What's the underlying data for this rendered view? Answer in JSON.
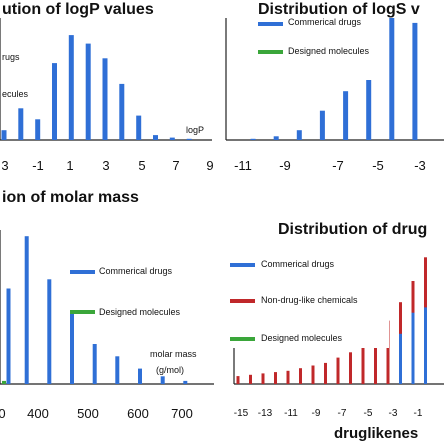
{
  "colors": {
    "blue": "#2f6fd6",
    "green": "#3aa63a",
    "red": "#c0282a",
    "axis": "#222222"
  },
  "chart_data": [
    {
      "id": "logp",
      "type": "bar",
      "title": "ution of logP values",
      "xlabel": "logP",
      "xlim": [
        -3,
        9
      ],
      "ylim": [
        0,
        100
      ],
      "xticks": [
        "3",
        "-1",
        "1",
        "3",
        "5",
        "7",
        "9"
      ],
      "legend": {
        "placement": "top-left",
        "entries": [
          {
            "label": "rugs",
            "series": "commercial"
          },
          {
            "label": "ecules",
            "series": "designed"
          }
        ]
      },
      "series": [
        {
          "name": "rugs",
          "color": "blue",
          "x": [
            -3,
            -2,
            -1,
            0,
            1,
            2,
            3,
            4,
            5,
            6,
            7,
            8
          ],
          "values": [
            8,
            26,
            17,
            63,
            86,
            79,
            67,
            46,
            20,
            4,
            2,
            1
          ]
        }
      ]
    },
    {
      "id": "logs",
      "type": "bar",
      "title": "Distribution of logS v",
      "xlim": [
        -11,
        -2
      ],
      "ylim": [
        0,
        100
      ],
      "xticks": [
        "-11",
        "-9",
        "-7",
        "-5",
        "-3"
      ],
      "legend": {
        "placement": "top-left",
        "entries": [
          {
            "label": "Commerical drugs",
            "series": "commercial"
          },
          {
            "label": "Designed molecules",
            "series": "designed"
          }
        ]
      },
      "series": [
        {
          "name": "Commerical drugs",
          "color": "blue",
          "x": [
            -11,
            -10,
            -9,
            -8,
            -7,
            -6,
            -5,
            -4,
            -3
          ],
          "values": [
            0,
            1,
            3,
            8,
            24,
            40,
            70,
            100,
            96
          ]
        }
      ]
    },
    {
      "id": "mass",
      "type": "bar",
      "title": "ion of molar mass",
      "xlabel": "molar mass",
      "xunit": "(g/mol)",
      "xlim": [
        300,
        750
      ],
      "ylim": [
        0,
        100
      ],
      "xticks": [
        "0",
        "400",
        "500",
        "600",
        "700"
      ],
      "legend": {
        "placement": "top-right",
        "entries": [
          {
            "label": "Commerical drugs",
            "series": "commercial"
          },
          {
            "label": "Designed molecules",
            "series": "designed"
          }
        ]
      },
      "series": [
        {
          "name": "Commerical drugs",
          "color": "blue",
          "x": [
            310,
            350,
            400,
            450,
            500,
            550,
            600,
            650,
            700
          ],
          "values": [
            62,
            96,
            68,
            47,
            26,
            18,
            10,
            5,
            2
          ]
        },
        {
          "name": "Designed molecules",
          "color": "green",
          "x": [
            300
          ],
          "values": [
            2
          ]
        }
      ]
    },
    {
      "id": "drug",
      "type": "bar",
      "title": "Distribution of drug",
      "xlabel": "druglikenes",
      "xlim": [
        -16,
        0
      ],
      "ylim": [
        0,
        100
      ],
      "xticks": [
        "-15",
        "-13",
        "-11",
        "-9",
        "-7",
        "-5",
        "-3",
        "-1"
      ],
      "legend": {
        "placement": "top-left",
        "entries": [
          {
            "label": "Commerical drugs",
            "series": "commercial"
          },
          {
            "label": "Non-drug-like chemicals",
            "series": "nondrug"
          },
          {
            "label": "Designed molecules",
            "series": "designed"
          }
        ]
      },
      "series": [
        {
          "name": "Non-drug-like chemicals",
          "color": "red",
          "x": [
            -16,
            -15,
            -14,
            -13,
            -12,
            -11,
            -10,
            -9,
            -8,
            -7,
            -6,
            -5,
            -4,
            -3,
            -2,
            -1
          ],
          "values": [
            6,
            7,
            8,
            9,
            10,
            12,
            14,
            16,
            20,
            24,
            30,
            38,
            48,
            62,
            78,
            96
          ]
        },
        {
          "name": "Commerical drugs",
          "color": "blue",
          "x": [
            -3,
            -2,
            -1
          ],
          "values": [
            38,
            54,
            58
          ]
        }
      ]
    }
  ]
}
